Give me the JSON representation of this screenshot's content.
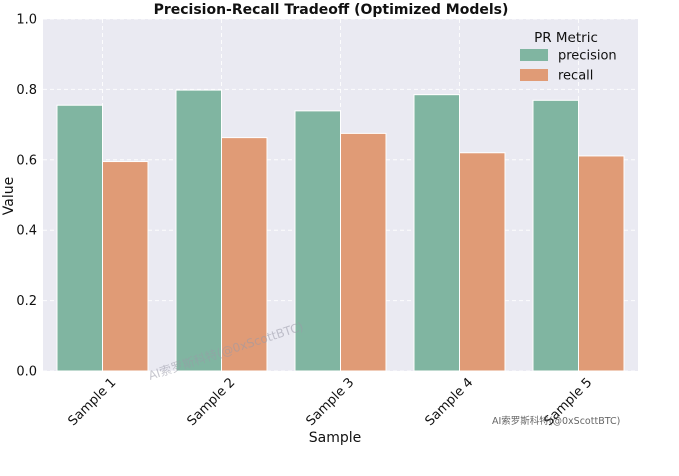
{
  "chart_data": {
    "type": "bar",
    "title": "Precision-Recall Tradeoff (Optimized Models)",
    "xlabel": "Sample",
    "ylabel": "Value",
    "categories": [
      "Sample 1",
      "Sample 2",
      "Sample 3",
      "Sample 4",
      "Sample 5"
    ],
    "ylim": [
      0,
      1.0
    ],
    "yticks": [
      "0.0",
      "0.2",
      "0.4",
      "0.6",
      "0.8",
      "1.0"
    ],
    "grid": true,
    "legend": {
      "title": "PR Metric",
      "position": "top-right"
    },
    "series": [
      {
        "name": "precision",
        "color": "#80b5a1",
        "values": [
          0.755,
          0.798,
          0.739,
          0.785,
          0.769
        ]
      },
      {
        "name": "recall",
        "color": "#e09b76",
        "values": [
          0.595,
          0.663,
          0.675,
          0.62,
          0.611
        ]
      }
    ],
    "background": "#eaeaf2"
  },
  "watermarks": [
    "AI索罗斯科特(@0xScottBTC)",
    "AI索罗斯科特(@0xScottBTC)"
  ]
}
